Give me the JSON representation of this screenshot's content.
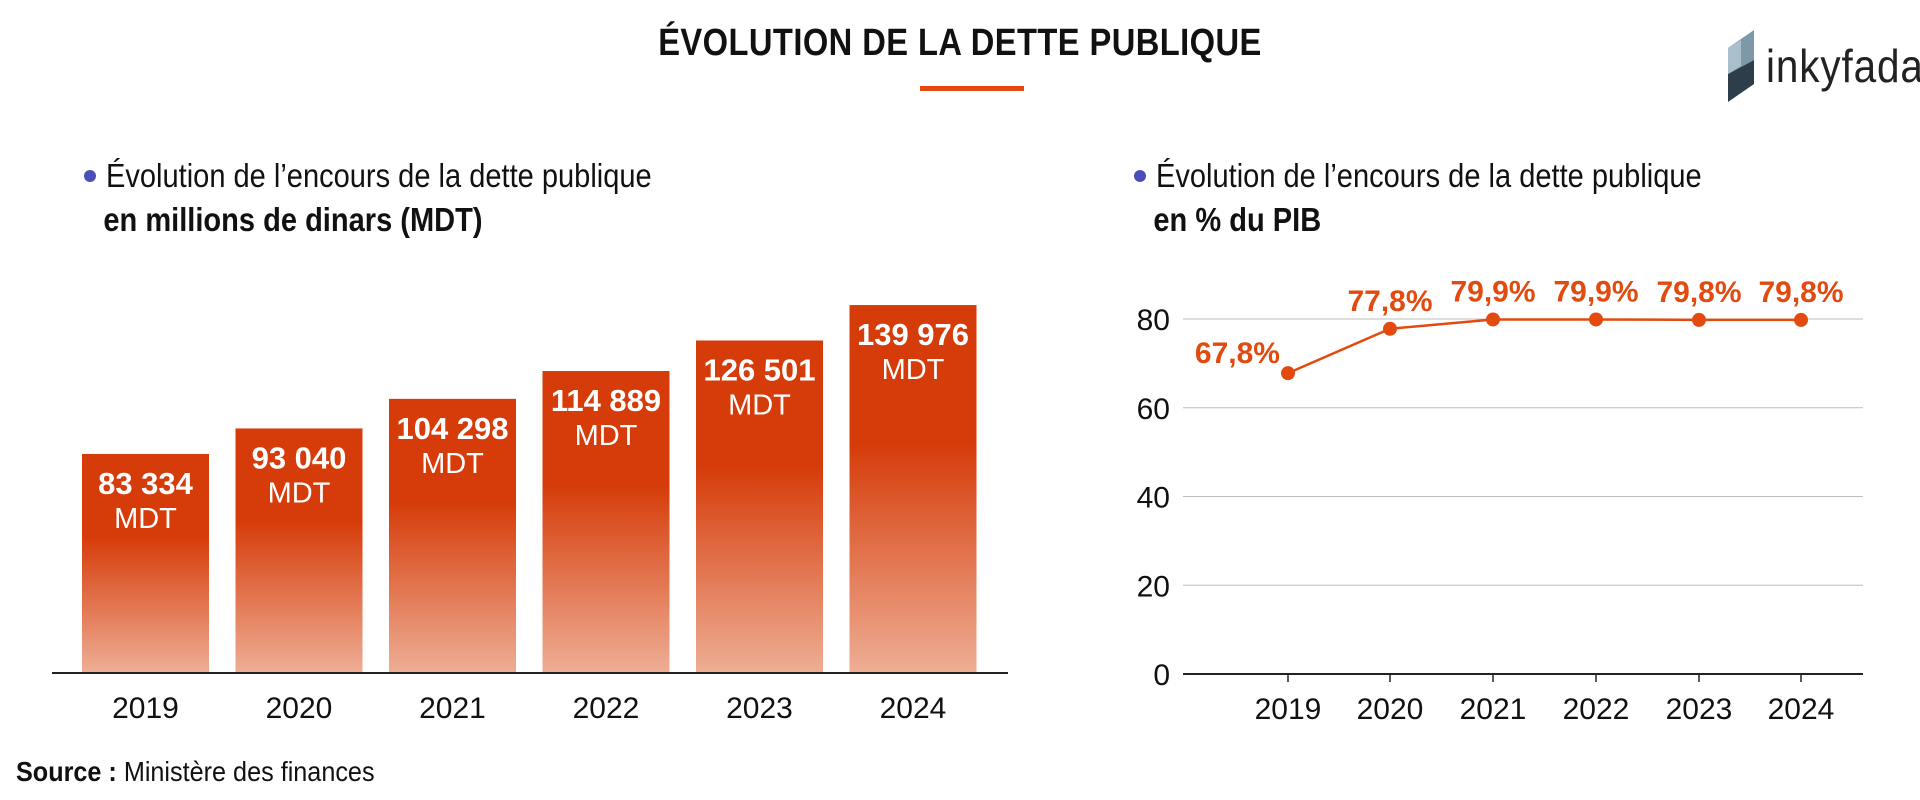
{
  "header": {
    "title": "ÉVOLUTION DE LA DETTE PUBLIQUE",
    "brand": "inkyfada",
    "accent_color": "#e24a10"
  },
  "left_panel": {
    "heading_line1": "Évolution de l’encours de la dette publique",
    "heading_line2": "en millions de dinars (MDT)"
  },
  "right_panel": {
    "heading_line1": "Évolution de l’encours de la dette publique",
    "heading_line2": "en % du PIB"
  },
  "source": {
    "label": "Source :",
    "text": "Ministère des finances"
  },
  "chart_data": [
    {
      "type": "bar",
      "categories": [
        "2019",
        "2020",
        "2021",
        "2022",
        "2023",
        "2024"
      ],
      "values": [
        83334,
        93040,
        104298,
        114889,
        126501,
        139976
      ],
      "value_labels": [
        "83 334",
        "93 040",
        "104 298",
        "114 889",
        "126 501",
        "139 976"
      ],
      "unit_label": "MDT",
      "ylim": [
        0,
        140000
      ],
      "grid": false,
      "bar_color_top": "#d63c0a",
      "bar_color_bottom": "#eeae95"
    },
    {
      "type": "line",
      "x": [
        "2019",
        "2020",
        "2021",
        "2022",
        "2023",
        "2024"
      ],
      "values": [
        67.8,
        77.8,
        79.9,
        79.9,
        79.8,
        79.8
      ],
      "value_labels": [
        "67,8%",
        "77,8%",
        "79,9%",
        "79,9%",
        "79,8%",
        "79,8%"
      ],
      "y_ticks": [
        0,
        20,
        40,
        60,
        80
      ],
      "ylim": [
        0,
        80
      ],
      "grid": true,
      "line_color": "#e24a10"
    }
  ]
}
